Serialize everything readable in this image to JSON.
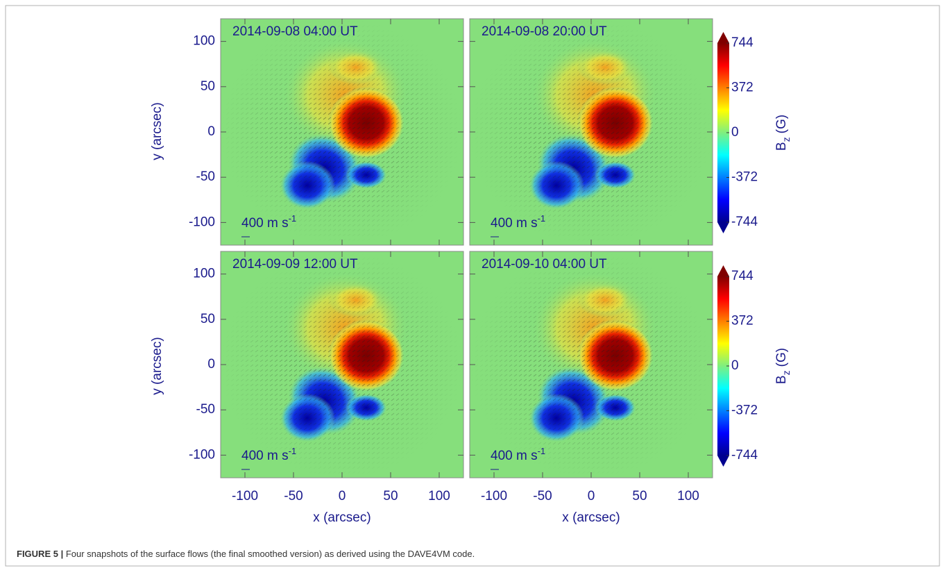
{
  "panels": [
    {
      "title": "2014-09-08 04:00 UT",
      "scale": "400 m s",
      "scale_exp": "-1"
    },
    {
      "title": "2014-09-08 20:00 UT",
      "scale": "400 m s",
      "scale_exp": "-1"
    },
    {
      "title": "2014-09-09 12:00 UT",
      "scale": "400 m s",
      "scale_exp": "-1"
    },
    {
      "title": "2014-09-10 04:00 UT",
      "scale": "400 m s",
      "scale_exp": "-1"
    }
  ],
  "axes": {
    "xlabel": "x (arcsec)",
    "ylabel": "y (arcsec)",
    "xlim": [
      -125,
      125
    ],
    "ylim": [
      -125,
      125
    ],
    "xticks": [
      -100,
      -50,
      0,
      50,
      100
    ],
    "yticks": [
      -100,
      -50,
      0,
      50,
      100
    ]
  },
  "colorbar": {
    "label": "B",
    "label_sub": "z",
    "label_unit": "(G)",
    "lim": [
      -744,
      744
    ],
    "ticks": [
      -744,
      -372,
      0,
      372,
      744
    ]
  },
  "caption": {
    "label": "FIGURE 5 |",
    "text": "Four snapshots of the surface flows (the final smoothed version) as derived using the DAVE4VM code."
  }
}
